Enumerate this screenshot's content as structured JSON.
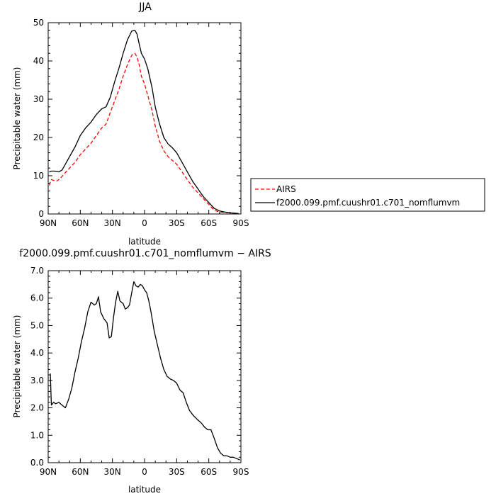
{
  "chart_data": [
    {
      "type": "line",
      "title": "JJA",
      "xlabel": "latitude",
      "ylabel": "Precipitable water (mm)",
      "x_tick_labels": [
        "90N",
        "60N",
        "30N",
        "0",
        "30S",
        "60S",
        "90S"
      ],
      "y_tick_labels": [
        "0",
        "10",
        "20",
        "30",
        "40",
        "50"
      ],
      "xlim": [
        90,
        -90
      ],
      "ylim": [
        0,
        50
      ],
      "legend_position": "right",
      "series": [
        {
          "name": "AIRS",
          "color": "#ff0000",
          "dash": "dashed",
          "x": [
            89,
            87,
            85,
            82,
            79,
            75,
            70,
            65,
            60,
            55,
            50,
            45,
            40,
            36,
            32,
            28,
            24,
            20,
            16,
            12,
            9,
            7,
            5,
            3,
            0,
            -3,
            -7,
            -10,
            -14,
            -18,
            -22,
            -26,
            -30,
            -35,
            -40,
            -45,
            -50,
            -55,
            -60,
            -65,
            -70,
            -75,
            -80,
            -85,
            -88
          ],
          "y": [
            7.5,
            9,
            8.8,
            8.6,
            9.2,
            10.5,
            12,
            13.5,
            15.5,
            17,
            18.5,
            20.5,
            22.5,
            23.5,
            26.5,
            29.5,
            32.5,
            36,
            39,
            41.5,
            42,
            41,
            39,
            36,
            34,
            31,
            27,
            23,
            19,
            16.5,
            15,
            14,
            13,
            11,
            9,
            7,
            5.5,
            4,
            2.5,
            1,
            0.5,
            0.4,
            0.3,
            0.2,
            0.1
          ]
        },
        {
          "name": "f2000.099.pmf.cuushr01.c701_nomflumvm",
          "color": "#000000",
          "dash": "solid",
          "x": [
            89,
            87,
            84,
            80,
            77,
            74,
            70,
            65,
            60,
            55,
            50,
            45,
            40,
            36,
            32,
            28,
            24,
            20,
            16,
            12,
            9,
            7,
            5,
            3,
            0,
            -3,
            -7,
            -10,
            -14,
            -18,
            -22,
            -26,
            -30,
            -35,
            -40,
            -45,
            -50,
            -55,
            -60,
            -65,
            -70,
            -75,
            -80,
            -85,
            -88
          ],
          "y": [
            11,
            11.2,
            11.2,
            11,
            11.5,
            13,
            15,
            17.5,
            20.5,
            22.5,
            24,
            26,
            27.5,
            28,
            30.5,
            34.5,
            38,
            42,
            45.5,
            47.8,
            48,
            47,
            44.5,
            42,
            40.5,
            38,
            33,
            28,
            23.5,
            20,
            18.3,
            17.3,
            16,
            13.5,
            11,
            8.5,
            6.5,
            4.5,
            3,
            1.5,
            0.8,
            0.5,
            0.3,
            0.2,
            0.1
          ]
        }
      ]
    },
    {
      "type": "line",
      "title": "f2000.099.pmf.cuushr01.c701_nomflumvm  −  AIRS",
      "xlabel": "latitude",
      "ylabel": "Precipitable water (mm)",
      "x_tick_labels": [
        "90N",
        "60N",
        "30N",
        "0",
        "30S",
        "60S",
        "90S"
      ],
      "y_tick_labels": [
        "0.0",
        "1.0",
        "2.0",
        "3.0",
        "4.0",
        "5.0",
        "6.0",
        "7.0"
      ],
      "xlim": [
        90,
        -90
      ],
      "ylim": [
        0,
        7
      ],
      "series": [
        {
          "color": "#000000",
          "dash": "solid",
          "x": [
            88,
            87,
            85,
            83,
            80,
            77,
            74,
            71,
            68,
            65,
            62,
            59,
            56,
            53,
            50,
            47,
            45,
            43,
            41,
            38,
            35,
            33,
            31,
            29,
            27,
            25,
            23,
            20,
            18,
            16,
            14,
            12,
            10,
            8,
            6,
            4,
            2,
            0,
            -2,
            -4,
            -6,
            -9,
            -12,
            -15,
            -18,
            -21,
            -24,
            -27,
            -30,
            -33,
            -36,
            -39,
            -42,
            -46,
            -50,
            -53,
            -56,
            -59,
            -62,
            -65,
            -68,
            -71,
            -74,
            -77,
            -80,
            -83,
            -86,
            -89
          ],
          "y": [
            3.25,
            2.1,
            2.2,
            2.15,
            2.2,
            2.1,
            2.0,
            2.3,
            2.7,
            3.3,
            3.8,
            4.4,
            4.9,
            5.5,
            5.85,
            5.75,
            5.8,
            6.05,
            5.5,
            5.25,
            5.1,
            4.55,
            4.6,
            5.3,
            5.85,
            6.25,
            5.9,
            5.8,
            5.6,
            5.65,
            5.75,
            6.2,
            6.6,
            6.45,
            6.4,
            6.5,
            6.45,
            6.3,
            6.2,
            5.9,
            5.5,
            4.8,
            4.3,
            3.8,
            3.4,
            3.15,
            3.05,
            3.0,
            2.9,
            2.65,
            2.55,
            2.2,
            1.9,
            1.7,
            1.55,
            1.45,
            1.3,
            1.2,
            1.2,
            0.9,
            0.55,
            0.35,
            0.25,
            0.25,
            0.2,
            0.2,
            0.15,
            0.1
          ]
        }
      ]
    }
  ]
}
